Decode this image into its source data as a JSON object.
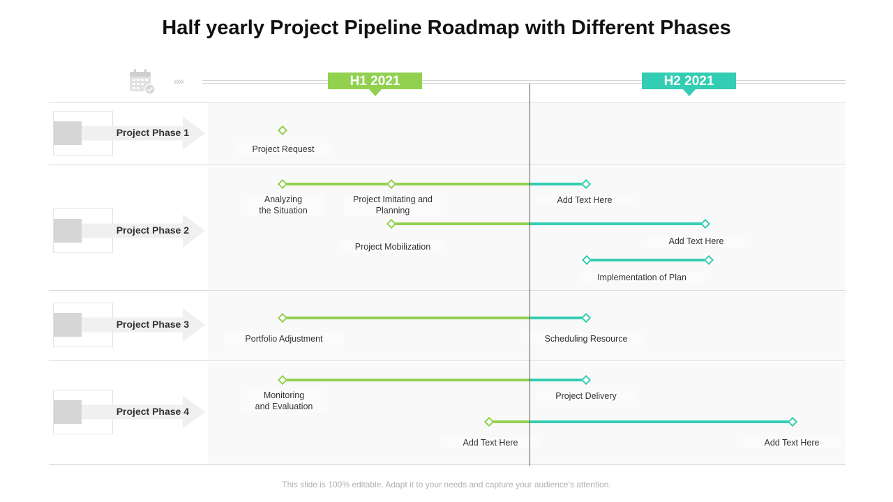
{
  "title": "Half yearly Project Pipeline Roadmap with Different Phases",
  "header": {
    "calendar_icon": "calendar-check-icon",
    "chevrons": "››››",
    "h1_label": "H1 2021",
    "h2_label": "H2 2021"
  },
  "phases": [
    {
      "label": "Project Phase 1"
    },
    {
      "label": "Project Phase 2"
    },
    {
      "label": "Project Phase 3"
    },
    {
      "label": "Project Phase 4"
    }
  ],
  "milestones": {
    "p1_request": "Project Request",
    "p2_analyzing": "Analyzing\nthe Situation",
    "p2_imitating": "Project Imitating and\nPlanning",
    "p2_add1": "Add Text Here",
    "p2_mobilization": "Project Mobilization",
    "p2_add2": "Add Text Here",
    "p2_implementation": "Implementation  of Plan",
    "p3_portfolio": "Portfolio Adjustment",
    "p3_scheduling": "Scheduling Resource",
    "p4_monitoring": "Monitoring\nand Evaluation",
    "p4_delivery": "Project Delivery",
    "p4_add1": "Add Text Here",
    "p4_add2": "Add Text Here"
  },
  "colors": {
    "h1": "#92d050",
    "h2": "#33cdb3"
  },
  "footer": "This slide is 100% editable. Adapt it to your needs and capture your audience’s attention."
}
